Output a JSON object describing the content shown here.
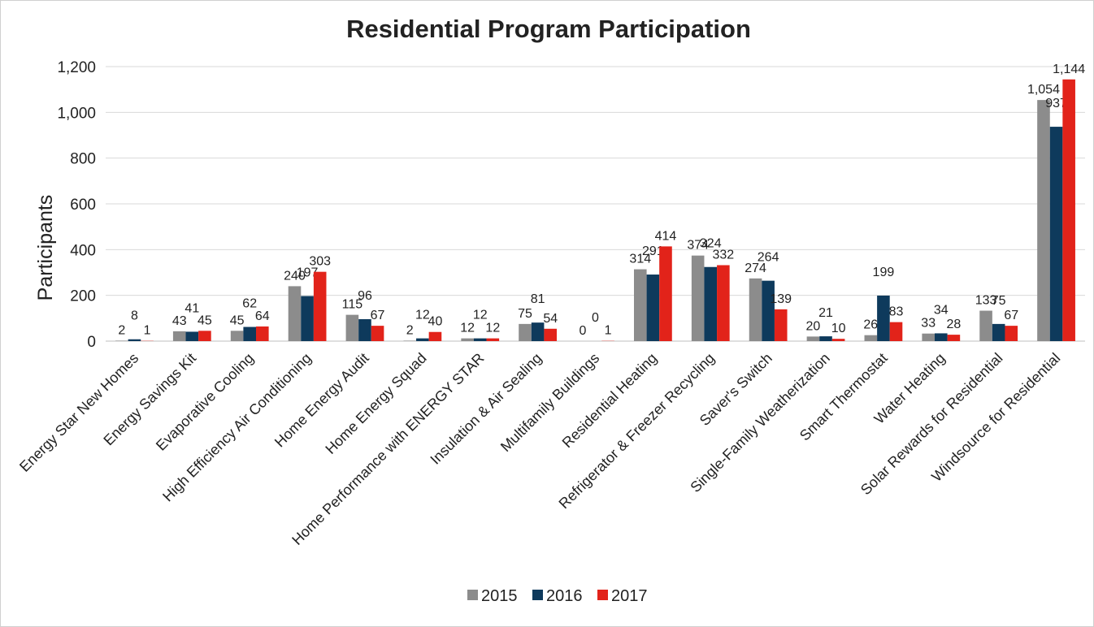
{
  "chart_data": {
    "type": "bar",
    "title": "Residential Program Participation",
    "y_label": "Participants",
    "categories": [
      "Energy Star New Homes",
      "Energy Savings Kit",
      "Evaporative Cooling",
      "High Efficiency Air Conditioning",
      "Home Energy Audit",
      "Home Energy Squad",
      "Home Performance with ENERGY STAR",
      "Insulation & Air Sealing",
      "Multifamily Buildings",
      "Residential Heating",
      "Refrigerator & Freezer Recycling",
      "Saver's Switch",
      "Single-Family Weatherization",
      "Smart Thermostat",
      "Water Heating",
      "Solar Rewards for Residential",
      "Windsource for Residential"
    ],
    "series": [
      {
        "name": "2015",
        "color": "#8c8c8c",
        "values": [
          2,
          43,
          45,
          240,
          115,
          2,
          12,
          75,
          0,
          314,
          374,
          274,
          20,
          26,
          33,
          133,
          1054
        ],
        "value_labels": [
          "2",
          "43",
          "45",
          "240",
          "115",
          "2",
          "12",
          "75",
          "0",
          "314",
          "374",
          "274",
          "20",
          "26",
          "33",
          "133",
          "1,054"
        ]
      },
      {
        "name": "2016",
        "color": "#0e3a5c",
        "values": [
          8,
          41,
          62,
          197,
          96,
          12,
          12,
          81,
          0,
          291,
          324,
          264,
          21,
          199,
          34,
          75,
          937
        ],
        "value_labels": [
          "8",
          "41",
          "62",
          "197",
          "96",
          "12",
          "12",
          "81",
          "0",
          "291",
          "324",
          "264",
          "21",
          "199",
          "34",
          "75",
          "937"
        ]
      },
      {
        "name": "2017",
        "color": "#e2231a",
        "values": [
          1,
          45,
          64,
          303,
          67,
          40,
          12,
          54,
          1,
          414,
          332,
          139,
          10,
          83,
          28,
          67,
          1144
        ],
        "value_labels": [
          "1",
          "45",
          "64",
          "303",
          "67",
          "40",
          "12",
          "54",
          "1",
          "414",
          "332",
          "139",
          "10",
          "83",
          "28",
          "67",
          "1,144"
        ]
      }
    ],
    "ylim": [
      0,
      1200
    ],
    "yticks": [
      0,
      200,
      400,
      600,
      800,
      {
        "value": 1000,
        "label": "1,000"
      },
      {
        "value": 1200,
        "label": "1,200"
      }
    ],
    "legend": "bottom"
  }
}
